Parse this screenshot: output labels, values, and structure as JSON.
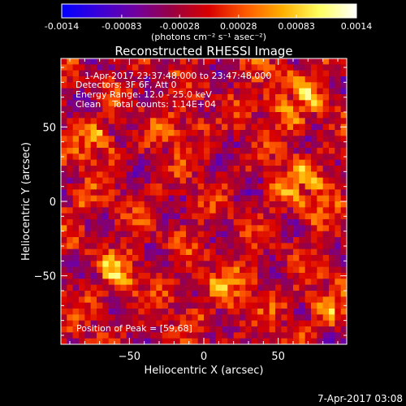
{
  "chart_data": {
    "type": "heatmap",
    "title": "Reconstructed RHESSI Image",
    "annotations": {
      "time_range": "1-Apr-2017 23:37:48.000 to 23:47:48.000",
      "detectors": "Detectors: 3F 6F, Att 0",
      "energy_range": "Energy Range: 12.0 - 25.0 keV",
      "clean_counts": "Clean    Total counts: 1.14E+04",
      "peak_position": "Position of Peak = [59,68]"
    },
    "xlabel": "Heliocentric X (arcsec)",
    "ylabel": "Heliocentric Y (arcsec)",
    "xlim": [
      -96,
      96
    ],
    "ylim": [
      -96,
      96
    ],
    "xticks": [
      -50,
      0,
      50
    ],
    "yticks": [
      -50,
      0,
      50
    ],
    "colorbar": {
      "min": -0.0014,
      "max": 0.0014,
      "tick_labels": [
        "-0.0014",
        "-0.00083",
        "-0.00028",
        "0.00028",
        "0.00083",
        "0.0014"
      ],
      "label": "(photons cm⁻² s⁻¹ asec⁻²)",
      "colormap": "blue-purple-red-yellow-white",
      "stops": [
        "#0000ff",
        "#3a00d8",
        "#7000a0",
        "#9a0040",
        "#d80000",
        "#ff5a00",
        "#ffb000",
        "#ffff60",
        "#ffffff"
      ]
    },
    "grid": {
      "size": 48,
      "base_value": -0.00016,
      "bright_sources": [
        {
          "x": 59,
          "y": 68,
          "intensity": 0.0014,
          "spread": 12
        },
        {
          "x": -70,
          "y": 40,
          "intensity": 0.001,
          "spread": 9
        },
        {
          "x": 70,
          "y": 10,
          "intensity": 0.001,
          "spread": 14
        },
        {
          "x": -60,
          "y": -50,
          "intensity": 0.0009,
          "spread": 12
        },
        {
          "x": 80,
          "y": -70,
          "intensity": 0.0011,
          "spread": 10
        },
        {
          "x": 10,
          "y": -60,
          "intensity": 0.0009,
          "spread": 12
        },
        {
          "x": -10,
          "y": 50,
          "intensity": 0.0007,
          "spread": 10
        },
        {
          "x": -85,
          "y": -5,
          "intensity": 0.0007,
          "spread": 8
        }
      ],
      "texture_amplitude": 0.0008,
      "texture_period": 18
    }
  },
  "footer": {
    "timestamp": "7-Apr-2017 03:08"
  }
}
